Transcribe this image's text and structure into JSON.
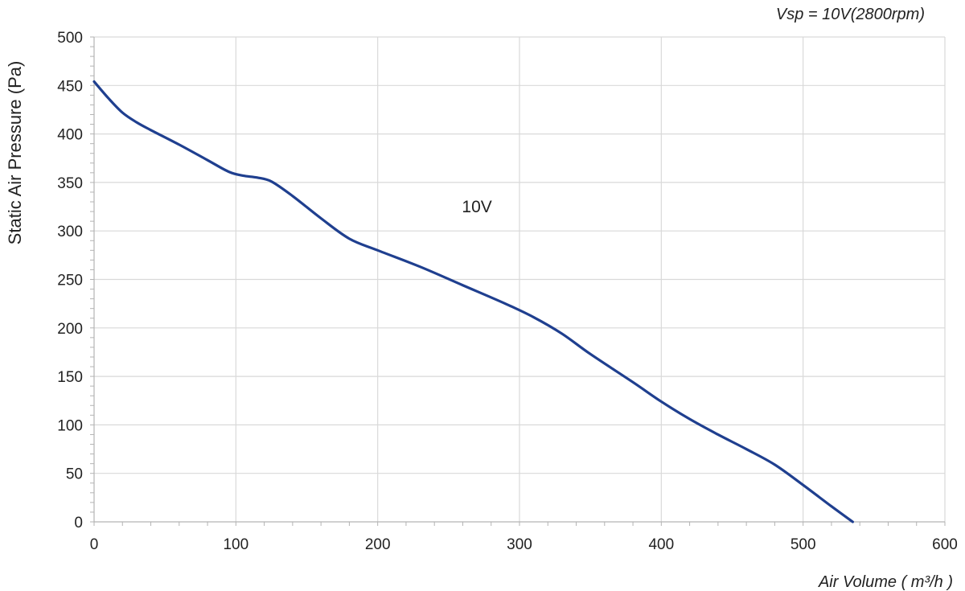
{
  "chart_data": {
    "type": "line",
    "title": "Vsp = 10V(2800rpm)",
    "xlabel": "Air Volume ( m³/h )",
    "ylabel": "Static Air Pressure  (Pa)",
    "xlim": [
      0,
      600
    ],
    "ylim": [
      0,
      500
    ],
    "x_ticks": [
      0,
      100,
      200,
      300,
      400,
      500,
      600
    ],
    "y_ticks": [
      0,
      50,
      100,
      150,
      200,
      250,
      300,
      350,
      400,
      450,
      500
    ],
    "grid": true,
    "annotation": {
      "text": "10V",
      "x": 270,
      "y": 325
    },
    "series": [
      {
        "name": "",
        "color": "#1f3f8f",
        "points": [
          [
            0,
            454
          ],
          [
            10,
            437
          ],
          [
            20,
            422
          ],
          [
            30,
            412
          ],
          [
            40,
            404
          ],
          [
            60,
            389
          ],
          [
            80,
            373
          ],
          [
            95,
            361
          ],
          [
            105,
            357
          ],
          [
            115,
            355
          ],
          [
            125,
            351
          ],
          [
            140,
            336
          ],
          [
            160,
            313
          ],
          [
            180,
            292
          ],
          [
            200,
            280
          ],
          [
            230,
            263
          ],
          [
            260,
            244
          ],
          [
            290,
            225
          ],
          [
            310,
            211
          ],
          [
            330,
            194
          ],
          [
            350,
            173
          ],
          [
            380,
            144
          ],
          [
            400,
            124
          ],
          [
            420,
            106
          ],
          [
            440,
            90
          ],
          [
            460,
            75
          ],
          [
            480,
            59
          ],
          [
            500,
            38
          ],
          [
            520,
            16
          ],
          [
            535,
            0
          ]
        ]
      }
    ]
  }
}
